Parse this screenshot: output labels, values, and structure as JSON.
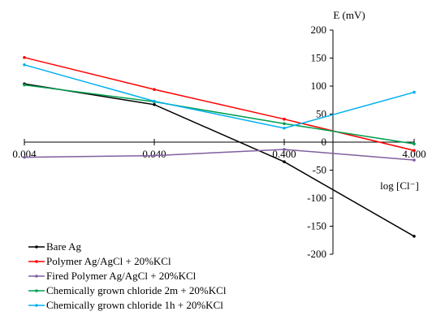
{
  "chart_data": {
    "type": "line",
    "title": "",
    "xlabel": "log [Cl⁻]",
    "ylabel": "E (mV)",
    "x_scale": "log",
    "x": [
      0.004,
      0.04,
      0.4,
      4.0
    ],
    "x_tick_labels": [
      "0.004",
      "0.040",
      "0.400",
      "4.000"
    ],
    "ylim": [
      -200,
      200
    ],
    "y_ticks": [
      -200,
      -150,
      -100,
      -50,
      0,
      50,
      100,
      150,
      200
    ],
    "grid": false,
    "legend_position": "bottom-left",
    "series": [
      {
        "name": "Bare Ag",
        "color": "#000000",
        "values": [
          104,
          67,
          -35,
          -168
        ]
      },
      {
        "name": "Polymer Ag/AgCl + 20%KCl",
        "color": "#ff0000",
        "values": [
          151,
          94,
          41,
          -15
        ]
      },
      {
        "name": "Fired Polymer Ag/AgCl + 20%KCl",
        "color": "#7f5fa0",
        "values": [
          -27,
          -24,
          -13,
          -32
        ]
      },
      {
        "name": "Chemically grown chloride 2m + 20%KCl",
        "color": "#00a050",
        "values": [
          102,
          72,
          33,
          -3
        ]
      },
      {
        "name": "Chemically grown chloride 1h + 20%KCl",
        "color": "#00b0f0",
        "values": [
          138,
          73,
          25,
          89
        ]
      }
    ]
  }
}
